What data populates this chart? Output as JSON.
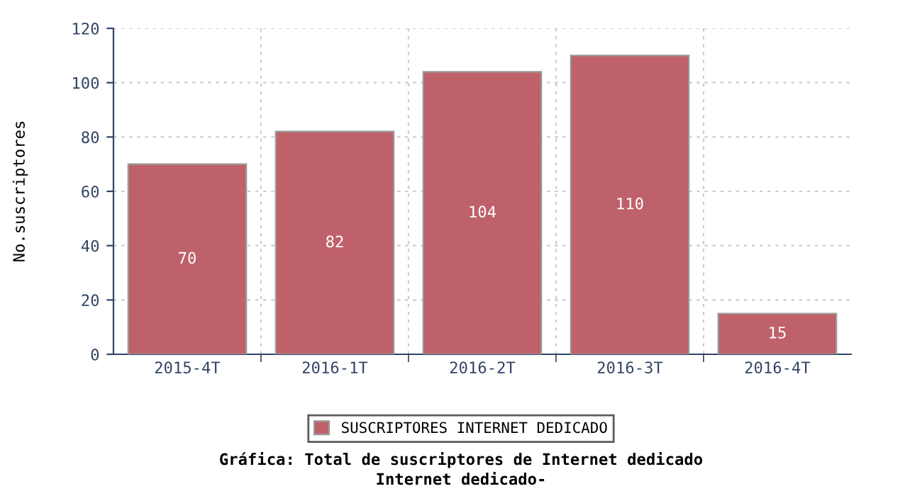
{
  "chart_data": {
    "type": "bar",
    "title": "Gráfica: Total de suscriptores de Internet dedicado",
    "subtitle": "Internet dedicado-",
    "ylabel": "No.suscriptores",
    "categories": [
      "2015-4T",
      "2016-1T",
      "2016-2T",
      "2016-3T",
      "2016-4T"
    ],
    "series": [
      {
        "name": "SUSCRIPTORES INTERNET DEDICADO",
        "color": "#bf616a",
        "values": [
          70,
          82,
          104,
          110,
          15
        ]
      }
    ],
    "ylim": [
      0,
      120
    ],
    "yticks": [
      0,
      20,
      40,
      60,
      80,
      100,
      120
    ],
    "grid": true,
    "legend": "bottom",
    "data_labels": true
  }
}
